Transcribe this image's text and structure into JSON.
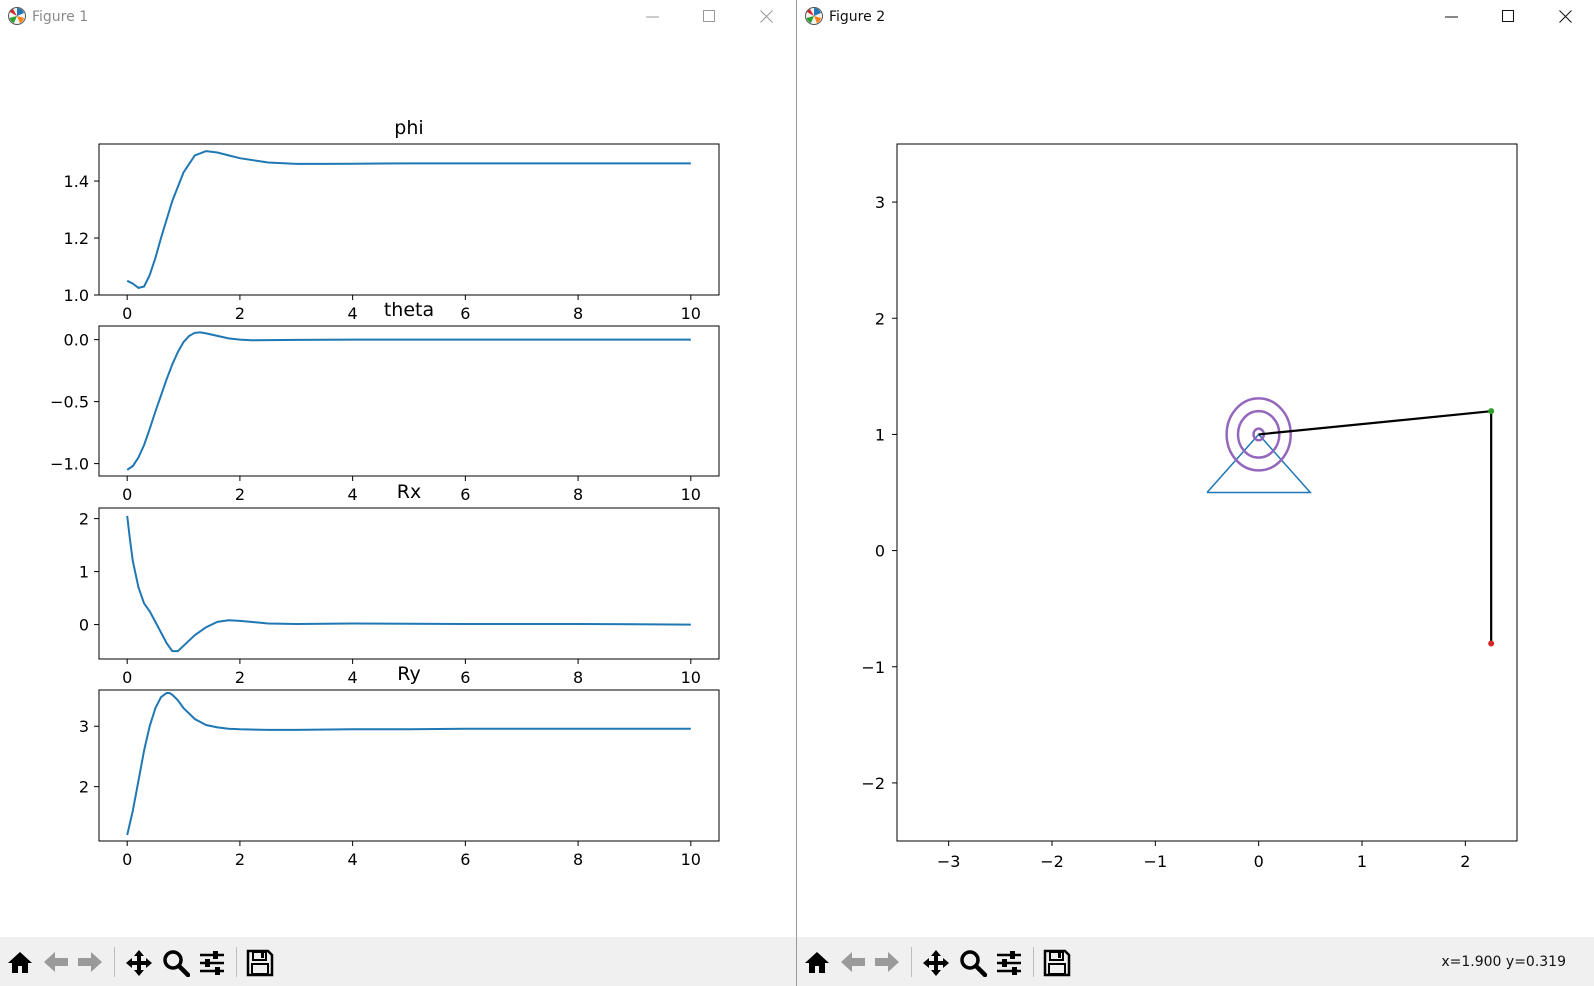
{
  "figure1": {
    "title": "Figure 1",
    "subplots": [
      {
        "title": "phi",
        "ytick_labels": [
          "1.4",
          "1.2",
          "1.0"
        ],
        "xtick_labels": [
          "0",
          "2",
          "4",
          "6",
          "8",
          "10"
        ]
      },
      {
        "title": "theta",
        "ytick_labels": [
          "0.0",
          "−0.5",
          "−1.0"
        ],
        "xtick_labels": [
          "0",
          "2",
          "4",
          "6",
          "8",
          "10"
        ]
      },
      {
        "title": "Rx",
        "ytick_labels": [
          "2",
          "1",
          "0"
        ],
        "xtick_labels": [
          "0",
          "2",
          "4",
          "6",
          "8",
          "10"
        ]
      },
      {
        "title": "Ry",
        "ytick_labels": [
          "3",
          "2"
        ],
        "xtick_labels": [
          "0",
          "2",
          "4",
          "6",
          "8",
          "10"
        ]
      }
    ]
  },
  "figure2": {
    "title": "Figure 2",
    "xtick_labels": [
      "−3",
      "−2",
      "−1",
      "0",
      "1",
      "2"
    ],
    "ytick_labels": [
      "3",
      "2",
      "1",
      "0",
      "−1",
      "−2"
    ],
    "coords_readout": "x=1.900 y=0.319"
  },
  "toolbar": {
    "icons": [
      "home-icon",
      "back-arrow-icon",
      "forward-arrow-icon",
      "pan-move-icon",
      "zoom-magnifier-icon",
      "configure-subplots-icon",
      "save-floppy-icon"
    ]
  },
  "chart_data": [
    {
      "type": "line",
      "title": "phi",
      "xlim": [
        -0.5,
        10.5
      ],
      "ylim": [
        1.0,
        1.53
      ],
      "series": [
        {
          "x": [
            0,
            0.1,
            0.2,
            0.3,
            0.4,
            0.5,
            0.6,
            0.8,
            1.0,
            1.2,
            1.4,
            1.6,
            1.8,
            2.0,
            2.5,
            3.0,
            3.5,
            4,
            5,
            6,
            7,
            8,
            9,
            10
          ],
          "y": [
            1.05,
            1.04,
            1.025,
            1.03,
            1.07,
            1.13,
            1.2,
            1.33,
            1.43,
            1.49,
            1.505,
            1.5,
            1.49,
            1.48,
            1.465,
            1.46,
            1.46,
            1.461,
            1.462,
            1.462,
            1.462,
            1.462,
            1.462,
            1.462
          ]
        }
      ]
    },
    {
      "type": "line",
      "title": "theta",
      "xlim": [
        -0.5,
        10.5
      ],
      "ylim": [
        -1.1,
        0.11
      ],
      "series": [
        {
          "x": [
            0,
            0.1,
            0.2,
            0.3,
            0.4,
            0.5,
            0.6,
            0.7,
            0.8,
            0.9,
            1.0,
            1.1,
            1.2,
            1.3,
            1.4,
            1.6,
            1.8,
            2.0,
            2.2,
            2.5,
            3,
            4,
            6,
            8,
            10
          ],
          "y": [
            -1.05,
            -1.02,
            -0.95,
            -0.85,
            -0.72,
            -0.58,
            -0.45,
            -0.32,
            -0.2,
            -0.1,
            -0.02,
            0.03,
            0.055,
            0.058,
            0.05,
            0.03,
            0.01,
            0.0,
            -0.005,
            -0.004,
            -0.002,
            0,
            0,
            0,
            0
          ]
        }
      ]
    },
    {
      "type": "line",
      "title": "Rx",
      "xlim": [
        -0.5,
        10.5
      ],
      "ylim": [
        -0.65,
        2.2
      ],
      "series": [
        {
          "x": [
            0,
            0.05,
            0.1,
            0.2,
            0.3,
            0.4,
            0.5,
            0.6,
            0.7,
            0.8,
            0.9,
            1.0,
            1.2,
            1.4,
            1.6,
            1.8,
            2.0,
            2.2,
            2.5,
            3,
            4,
            6,
            8,
            10
          ],
          "y": [
            2.05,
            1.6,
            1.2,
            0.7,
            0.4,
            0.25,
            0.05,
            -0.15,
            -0.35,
            -0.5,
            -0.5,
            -0.4,
            -0.2,
            -0.05,
            0.05,
            0.08,
            0.07,
            0.05,
            0.02,
            0.01,
            0.02,
            0.01,
            0.01,
            0.0
          ]
        }
      ]
    },
    {
      "type": "line",
      "title": "Ry",
      "xlim": [
        -0.5,
        10.5
      ],
      "ylim": [
        1.1,
        3.6
      ],
      "series": [
        {
          "x": [
            0,
            0.1,
            0.2,
            0.3,
            0.4,
            0.5,
            0.6,
            0.7,
            0.75,
            0.8,
            0.9,
            1.0,
            1.2,
            1.4,
            1.6,
            1.8,
            2.0,
            2.5,
            3,
            4,
            5,
            6,
            8,
            10
          ],
          "y": [
            1.2,
            1.6,
            2.1,
            2.6,
            3.0,
            3.3,
            3.48,
            3.55,
            3.55,
            3.52,
            3.43,
            3.3,
            3.12,
            3.02,
            2.98,
            2.96,
            2.95,
            2.94,
            2.94,
            2.95,
            2.95,
            2.96,
            2.96,
            2.96
          ]
        }
      ]
    },
    {
      "type": "scatter",
      "title": "",
      "xlim": [
        -3.5,
        2.5
      ],
      "ylim": [
        -2.5,
        3.5
      ],
      "grid": false,
      "support_triangle": {
        "x": [
          -0.5,
          0,
          0.5,
          -0.5
        ],
        "y": [
          0.5,
          1.0,
          0.5,
          0.5
        ]
      },
      "spring_center": [
        0,
        1.0
      ],
      "spring_radii": [
        0.05,
        0.2,
        0.31
      ],
      "links": [
        {
          "x": [
            0,
            2.25
          ],
          "y": [
            1.0,
            1.2
          ]
        },
        {
          "x": [
            2.25,
            2.25
          ],
          "y": [
            1.2,
            -0.8
          ]
        }
      ],
      "points": [
        {
          "name": "joint",
          "x": 2.25,
          "y": 1.2,
          "color": "#2ca02c"
        },
        {
          "name": "tip",
          "x": 2.25,
          "y": -0.8,
          "color": "#d62728"
        }
      ]
    }
  ]
}
